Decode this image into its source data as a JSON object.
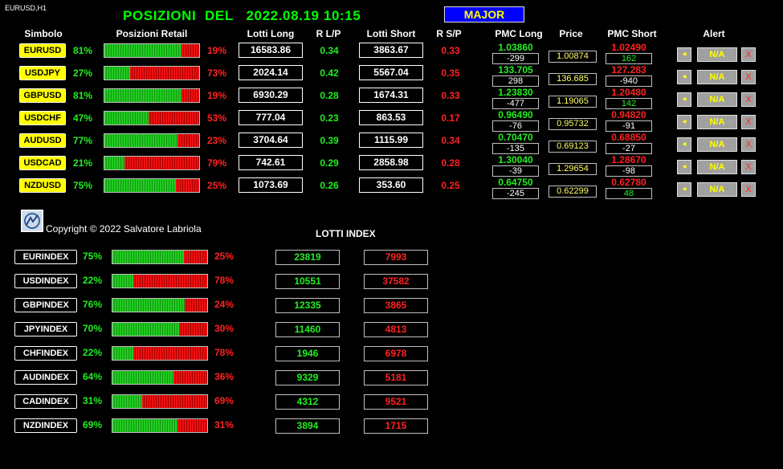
{
  "chart_label": "EURUSD,H1",
  "title_prefix": "POSIZIONI  DEL",
  "title_datetime": "2022.08.19 10:15",
  "major_button": "MAJOR",
  "headers": {
    "simbolo": "Simbolo",
    "posizioni_retail": "Posizioni Retail",
    "lotti_long": "Lotti Long",
    "r_lp": "R L/P",
    "lotti_short": "Lotti Short",
    "r_sp": "R S/P",
    "pmc_long": "PMC Long",
    "price": "Price",
    "pmc_short": "PMC Short",
    "alert": "Alert"
  },
  "pairs": [
    {
      "symbol": "EURUSD",
      "long_pct": "81%",
      "short_pct": "19%",
      "long_frac": 0.81,
      "lotti_long": "16583.86",
      "r_lp": "0.34",
      "lotti_short": "3863.67",
      "r_sp": "0.33",
      "pmc_long": "1.03860",
      "pmc_long_diff": "-299",
      "price": "1.00874",
      "pmc_short": "1.02490",
      "pmc_short_diff": "162",
      "pmc_short_diff_color": "#22ee22",
      "alert": "N/A",
      "alert_x": "X"
    },
    {
      "symbol": "USDJPY",
      "long_pct": "27%",
      "short_pct": "73%",
      "long_frac": 0.27,
      "lotti_long": "2024.14",
      "r_lp": "0.42",
      "lotti_short": "5567.04",
      "r_sp": "0.35",
      "pmc_long": "133.705",
      "pmc_long_diff": "298",
      "price": "136.685",
      "pmc_short": "127.283",
      "pmc_short_diff": "-940",
      "pmc_short_diff_color": "#ffffff",
      "alert": "N/A",
      "alert_x": "X"
    },
    {
      "symbol": "GBPUSD",
      "long_pct": "81%",
      "short_pct": "19%",
      "long_frac": 0.81,
      "lotti_long": "6930.29",
      "r_lp": "0.28",
      "lotti_short": "1674.31",
      "r_sp": "0.33",
      "pmc_long": "1.23830",
      "pmc_long_diff": "-477",
      "price": "1.19065",
      "pmc_short": "1.20480",
      "pmc_short_diff": "142",
      "pmc_short_diff_color": "#22ee22",
      "alert": "N/A",
      "alert_x": "X"
    },
    {
      "symbol": "USDCHF",
      "long_pct": "47%",
      "short_pct": "53%",
      "long_frac": 0.47,
      "lotti_long": "777.04",
      "r_lp": "0.23",
      "lotti_short": "863.53",
      "r_sp": "0.17",
      "pmc_long": "0.96490",
      "pmc_long_diff": "-76",
      "price": "0.95732",
      "pmc_short": "0.94820",
      "pmc_short_diff": "-91",
      "pmc_short_diff_color": "#ffffff",
      "alert": "N/A",
      "alert_x": "X"
    },
    {
      "symbol": "AUDUSD",
      "long_pct": "77%",
      "short_pct": "23%",
      "long_frac": 0.77,
      "lotti_long": "3704.64",
      "r_lp": "0.39",
      "lotti_short": "1115.99",
      "r_sp": "0.34",
      "pmc_long": "0.70470",
      "pmc_long_diff": "-135",
      "price": "0.69123",
      "pmc_short": "0.68850",
      "pmc_short_diff": "-27",
      "pmc_short_diff_color": "#ffffff",
      "alert": "N/A",
      "alert_x": "X"
    },
    {
      "symbol": "USDCAD",
      "long_pct": "21%",
      "short_pct": "79%",
      "long_frac": 0.21,
      "lotti_long": "742.61",
      "r_lp": "0.29",
      "lotti_short": "2858.98",
      "r_sp": "0.28",
      "pmc_long": "1.30040",
      "pmc_long_diff": "-39",
      "price": "1.29654",
      "pmc_short": "1.28670",
      "pmc_short_diff": "-98",
      "pmc_short_diff_color": "#ffffff",
      "alert": "N/A",
      "alert_x": "X"
    },
    {
      "symbol": "NZDUSD",
      "long_pct": "75%",
      "short_pct": "25%",
      "long_frac": 0.75,
      "lotti_long": "1073.69",
      "r_lp": "0.26",
      "lotti_short": "353.60",
      "r_sp": "0.25",
      "pmc_long": "0.64750",
      "pmc_long_diff": "-245",
      "price": "0.62299",
      "pmc_short": "0.62780",
      "pmc_short_diff": "48",
      "pmc_short_diff_color": "#22ee22",
      "alert": "N/A",
      "alert_x": "X"
    }
  ],
  "copyright": "Copyright © 2022 Salvatore Labriola",
  "lotti_index_title": "LOTTI INDEX",
  "indices": [
    {
      "name": "EURINDEX",
      "long_pct": "75%",
      "short_pct": "25%",
      "long_frac": 0.75,
      "lotti_long": "23819",
      "lotti_short": "7993"
    },
    {
      "name": "USDINDEX",
      "long_pct": "22%",
      "short_pct": "78%",
      "long_frac": 0.22,
      "lotti_long": "10551",
      "lotti_short": "37582"
    },
    {
      "name": "GBPINDEX",
      "long_pct": "76%",
      "short_pct": "24%",
      "long_frac": 0.76,
      "lotti_long": "12335",
      "lotti_short": "3865"
    },
    {
      "name": "JPYINDEX",
      "long_pct": "70%",
      "short_pct": "30%",
      "long_frac": 0.7,
      "lotti_long": "11460",
      "lotti_short": "4813"
    },
    {
      "name": "CHFINDEX",
      "long_pct": "22%",
      "short_pct": "78%",
      "long_frac": 0.22,
      "lotti_long": "1946",
      "lotti_short": "6978"
    },
    {
      "name": "AUDINDEX",
      "long_pct": "64%",
      "short_pct": "36%",
      "long_frac": 0.64,
      "lotti_long": "9329",
      "lotti_short": "5181"
    },
    {
      "name": "CADINDEX",
      "long_pct": "31%",
      "short_pct": "69%",
      "long_frac": 0.31,
      "lotti_long": "4312",
      "lotti_short": "9521"
    },
    {
      "name": "NZDINDEX",
      "long_pct": "69%",
      "short_pct": "31%",
      "long_frac": 0.69,
      "lotti_long": "3894",
      "lotti_short": "1715"
    }
  ],
  "colors": {
    "green": "#22ee22",
    "red": "#ff2222",
    "yellow": "#ffff00",
    "blue": "#0000ff"
  }
}
